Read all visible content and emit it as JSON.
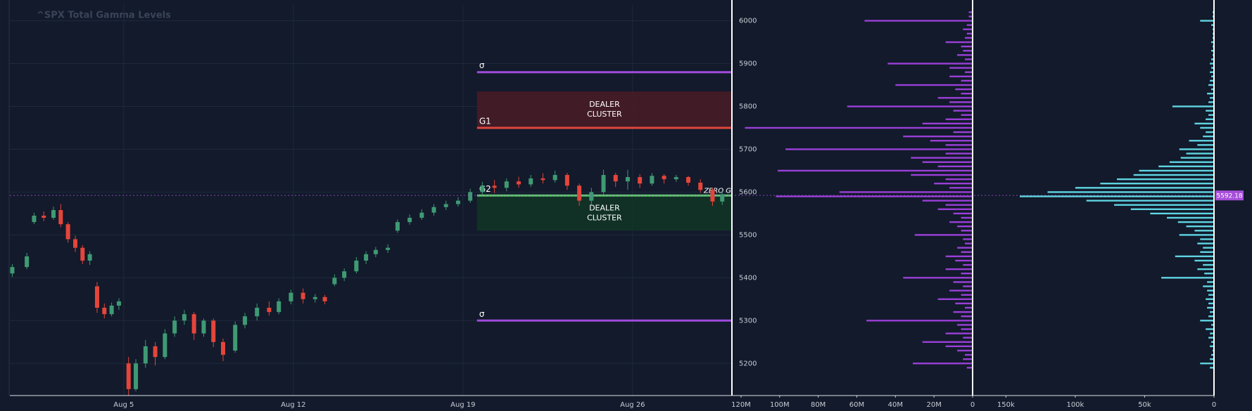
{
  "chart_data": [
    {
      "type": "candlestick",
      "title": "^SPX Total Gamma Levels",
      "x": [
        0.4,
        1.0,
        1.3,
        1.7,
        2.1,
        2.4,
        2.7,
        3.0,
        3.3,
        3.6,
        3.9,
        4.2,
        4.5,
        4.8,
        5.2,
        5.5,
        5.9,
        6.3,
        6.7,
        7.1,
        7.5,
        7.9,
        8.3,
        8.7,
        9.1,
        9.6,
        10.0,
        10.5,
        11.0,
        11.4,
        11.9,
        12.4,
        12.9,
        13.3,
        13.7,
        14.1,
        14.6,
        15.0,
        15.4,
        15.9,
        16.3,
        16.8,
        17.3,
        17.8,
        18.3,
        18.8,
        19.3,
        19.8,
        20.3,
        20.8,
        21.3,
        21.8,
        22.3,
        22.8,
        23.3,
        23.8,
        24.3,
        24.8,
        25.3,
        25.8,
        26.3,
        26.8,
        27.3,
        27.8,
        28.3,
        28.8,
        29.3,
        29.7
      ],
      "open": [
        5410,
        5425,
        5530,
        5545,
        5540,
        5558,
        5525,
        5490,
        5470,
        5440,
        5380,
        5330,
        5315,
        5335,
        5200,
        5140,
        5200,
        5240,
        5215,
        5270,
        5300,
        5315,
        5270,
        5300,
        5250,
        5230,
        5290,
        5310,
        5330,
        5320,
        5345,
        5365,
        5350,
        5355,
        5385,
        5400,
        5415,
        5440,
        5455,
        5465,
        5510,
        5530,
        5540,
        5552,
        5565,
        5572,
        5580,
        5600,
        5615,
        5610,
        5625,
        5618,
        5632,
        5628,
        5640,
        5615,
        5580,
        5600,
        5640,
        5625,
        5635,
        5620,
        5638,
        5630,
        5635,
        5622,
        5605,
        5578
      ],
      "high": [
        5432,
        5458,
        5552,
        5555,
        5566,
        5572,
        5530,
        5498,
        5476,
        5462,
        5390,
        5340,
        5342,
        5352,
        5215,
        5210,
        5255,
        5250,
        5280,
        5310,
        5325,
        5320,
        5305,
        5305,
        5258,
        5298,
        5318,
        5340,
        5345,
        5352,
        5372,
        5375,
        5362,
        5360,
        5408,
        5422,
        5448,
        5462,
        5472,
        5478,
        5536,
        5548,
        5560,
        5572,
        5580,
        5588,
        5608,
        5624,
        5628,
        5632,
        5636,
        5640,
        5644,
        5650,
        5645,
        5620,
        5610,
        5652,
        5645,
        5652,
        5642,
        5645,
        5642,
        5640,
        5638,
        5630,
        5610,
        5602
      ],
      "low": [
        5402,
        5420,
        5525,
        5532,
        5535,
        5518,
        5482,
        5460,
        5432,
        5430,
        5318,
        5305,
        5310,
        5325,
        5125,
        5135,
        5190,
        5195,
        5210,
        5262,
        5290,
        5255,
        5262,
        5238,
        5205,
        5225,
        5282,
        5300,
        5312,
        5315,
        5338,
        5340,
        5342,
        5338,
        5380,
        5392,
        5410,
        5432,
        5448,
        5458,
        5505,
        5524,
        5535,
        5545,
        5558,
        5566,
        5575,
        5594,
        5598,
        5602,
        5610,
        5612,
        5620,
        5622,
        5605,
        5568,
        5570,
        5595,
        5612,
        5605,
        5610,
        5615,
        5620,
        5624,
        5615,
        5598,
        5568,
        5570
      ],
      "close": [
        5425,
        5450,
        5545,
        5540,
        5558,
        5525,
        5490,
        5470,
        5440,
        5455,
        5330,
        5315,
        5335,
        5345,
        5140,
        5200,
        5240,
        5215,
        5270,
        5300,
        5315,
        5270,
        5300,
        5250,
        5220,
        5290,
        5310,
        5330,
        5320,
        5345,
        5365,
        5350,
        5355,
        5345,
        5400,
        5415,
        5440,
        5455,
        5465,
        5470,
        5530,
        5540,
        5552,
        5565,
        5572,
        5580,
        5600,
        5615,
        5610,
        5625,
        5618,
        5632,
        5628,
        5640,
        5615,
        5580,
        5600,
        5640,
        5625,
        5635,
        5620,
        5638,
        5630,
        5635,
        5622,
        5605,
        5578,
        5595
      ],
      "up_color": "#3f9a74",
      "down_color": "#e5453a",
      "xlim": [
        0.3,
        30.1
      ],
      "xticks": [
        {
          "value": 5,
          "label": "Aug 5"
        },
        {
          "value": 12,
          "label": "Aug 12"
        },
        {
          "value": 19,
          "label": "Aug 19"
        },
        {
          "value": 26,
          "label": "Aug 26"
        }
      ],
      "ylim": [
        5125,
        6037
      ],
      "yticks": [
        5200,
        5300,
        5400,
        5500,
        5600,
        5700,
        5800,
        5900,
        6000
      ],
      "grid": true,
      "zones": [
        {
          "label": [
            "DEALER",
            "CLUSTER"
          ],
          "from": 5750,
          "to": 5835,
          "color": "#4a1c26"
        },
        {
          "label": [
            "DEALER",
            "CLUSTER"
          ],
          "from": 5510,
          "to": 5592,
          "color": "#123626"
        }
      ],
      "levels": [
        {
          "name": "σ",
          "value": 5880,
          "color": "#a04bdc"
        },
        {
          "name": "G1",
          "value": 5750,
          "color": "#e0463c"
        },
        {
          "name": "G2",
          "value": 5592,
          "color": "#5cc96a"
        },
        {
          "name": "σ",
          "value": 5300,
          "color": "#a04bdc"
        }
      ],
      "zero_gamma": {
        "name": "ZERO G",
        "value": 5592
      },
      "last_price": 5592.18,
      "last_price_color": "#a64fd8"
    },
    {
      "type": "hbar",
      "y": [
        5190,
        5200,
        5210,
        5220,
        5230,
        5240,
        5250,
        5260,
        5270,
        5280,
        5290,
        5300,
        5310,
        5320,
        5330,
        5340,
        5350,
        5360,
        5370,
        5380,
        5390,
        5400,
        5410,
        5420,
        5430,
        5440,
        5450,
        5460,
        5470,
        5480,
        5490,
        5500,
        5510,
        5520,
        5530,
        5540,
        5550,
        5560,
        5570,
        5580,
        5590,
        5600,
        5610,
        5620,
        5630,
        5640,
        5650,
        5660,
        5670,
        5680,
        5690,
        5700,
        5710,
        5720,
        5730,
        5740,
        5750,
        5760,
        5770,
        5780,
        5790,
        5800,
        5810,
        5820,
        5830,
        5840,
        5850,
        5860,
        5870,
        5880,
        5890,
        5900,
        5910,
        5920,
        5930,
        5940,
        5950,
        5960,
        5970,
        5980,
        5990,
        6000,
        6010,
        6020
      ],
      "values": [
        3000000.0,
        31000000.0,
        5000000.0,
        4000000.0,
        8000000.0,
        14000000.0,
        26000000.0,
        5000000.0,
        14000000.0,
        6000000.0,
        8000000.0,
        55000000.0,
        6000000.0,
        10000000.0,
        4000000.0,
        9000000.0,
        18000000.0,
        6000000.0,
        12000000.0,
        5000000.0,
        10000000.0,
        36000000.0,
        6000000.0,
        14000000.0,
        5000000.0,
        9000000.0,
        14000000.0,
        6000000.0,
        8000000.0,
        4000000.0,
        5000000.0,
        30000000.0,
        6000000.0,
        8000000.0,
        12000000.0,
        6000000.0,
        10000000.0,
        18000000.0,
        14000000.0,
        26000000.0,
        102000000.0,
        69000000.0,
        12000000.0,
        20000000.0,
        14000000.0,
        32000000.0,
        101000000.0,
        18000000.0,
        26000000.0,
        32000000.0,
        14000000.0,
        97000000.0,
        14000000.0,
        22000000.0,
        36000000.0,
        10000000.0,
        118000000.0,
        26000000.0,
        14000000.0,
        6000000.0,
        10000000.0,
        65000000.0,
        12000000.0,
        18000000.0,
        6000000.0,
        9000000.0,
        40000000.0,
        6000000.0,
        12000000.0,
        4000000.0,
        12000000.0,
        44000000.0,
        4000000.0,
        8000000.0,
        5000000.0,
        6000000.0,
        14000000.0,
        4000000.0,
        3000000.0,
        5000000.0,
        3000000.0,
        56000000.0,
        2000000.0,
        2000000.0
      ],
      "color": "#9a3fd8",
      "xlim": [
        124000000.0,
        0
      ],
      "ylim": [
        5125,
        6037
      ],
      "xticks": [
        {
          "value": 120000000.0,
          "label": "120M"
        },
        {
          "value": 100000000.0,
          "label": "100M"
        },
        {
          "value": 80000000.0,
          "label": "80M"
        },
        {
          "value": 60000000.0,
          "label": "60M"
        },
        {
          "value": 40000000.0,
          "label": "40M"
        },
        {
          "value": 20000000.0,
          "label": "20M"
        },
        0
      ]
    },
    {
      "type": "hbar",
      "y": [
        5190,
        5200,
        5210,
        5220,
        5230,
        5240,
        5250,
        5260,
        5270,
        5280,
        5290,
        5300,
        5310,
        5320,
        5330,
        5340,
        5350,
        5360,
        5370,
        5380,
        5390,
        5400,
        5410,
        5420,
        5430,
        5440,
        5450,
        5460,
        5470,
        5480,
        5490,
        5500,
        5510,
        5520,
        5530,
        5540,
        5550,
        5560,
        5570,
        5580,
        5590,
        5600,
        5610,
        5620,
        5630,
        5640,
        5650,
        5660,
        5670,
        5680,
        5690,
        5700,
        5710,
        5720,
        5730,
        5740,
        5750,
        5760,
        5770,
        5780,
        5790,
        5800,
        5810,
        5820,
        5830,
        5840,
        5850,
        5860,
        5870,
        5880,
        5890,
        5900,
        5910,
        5920,
        5930,
        5940,
        5950,
        5960,
        5970,
        5980,
        5990,
        6000,
        6010,
        6020
      ],
      "values": [
        3000.0,
        10000.0,
        3000.0,
        2000.0,
        1000.0,
        3000.0,
        2000.0,
        4000.0,
        3000.0,
        6000.0,
        2000.0,
        10000.0,
        4000.0,
        3000.0,
        5000.0,
        4000.0,
        6000.0,
        4000.0,
        5000.0,
        8000.0,
        5000.0,
        38000.0,
        7000.0,
        12000.0,
        8000.0,
        14000.0,
        28000.0,
        10000.0,
        8000.0,
        12000.0,
        10000.0,
        25000.0,
        14000.0,
        20000.0,
        26000.0,
        34000.0,
        46000.0,
        60000.0,
        72000.0,
        92000.0,
        140000.0,
        120000.0,
        100000.0,
        82000.0,
        70000.0,
        58000.0,
        54000.0,
        40000.0,
        32000.0,
        24000.0,
        20000.0,
        25000.0,
        12000.0,
        18000.0,
        8000.0,
        6000.0,
        10000.0,
        14000.0,
        6000.0,
        4000.0,
        6000.0,
        30000.0,
        4000.0,
        3000.0,
        5000.0,
        2000.0,
        4000.0,
        3000.0,
        2000.0,
        3000.0,
        2000.0,
        3000.0,
        2000.0,
        1000.0,
        2000.0,
        1000.0,
        2000.0,
        1000.0,
        1000.0,
        1000.0,
        2000.0,
        10000.0,
        1000.0,
        1000.0
      ],
      "color": "#5fd4e2",
      "xlim": [
        172000,
        0
      ],
      "ylim": [
        5125,
        6037
      ],
      "xticks": [
        {
          "value": 150000,
          "label": "150k"
        },
        {
          "value": 100000,
          "label": "100k"
        },
        {
          "value": 50000,
          "label": "50k"
        },
        0
      ]
    }
  ]
}
